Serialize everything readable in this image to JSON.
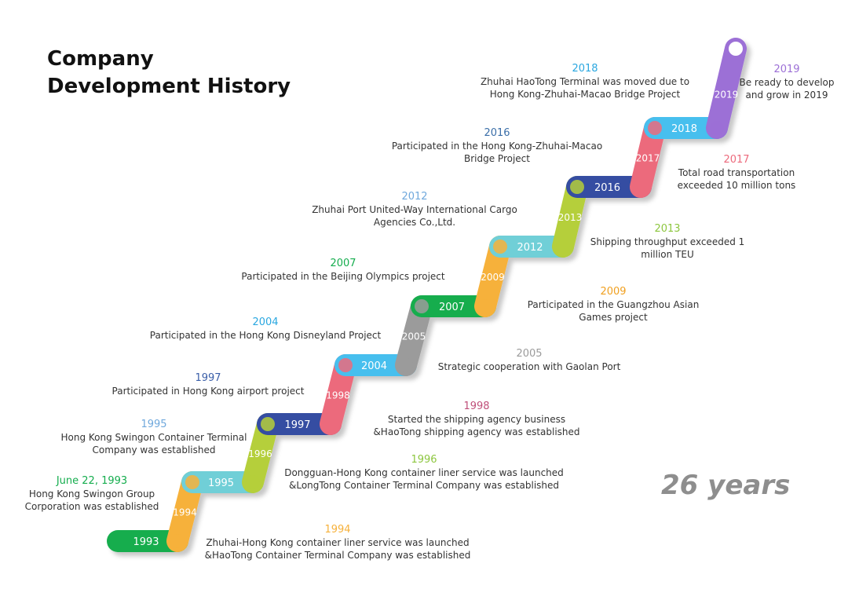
{
  "title": {
    "line1": "Company",
    "line2": "Development History"
  },
  "summary": "26 years",
  "colors": {
    "green": "#15ad4e",
    "orange": "#f6b13b",
    "teal": "#6fcfd7",
    "lime": "#b5cf3a",
    "navy": "#354ea2",
    "pink": "#ec6a7c",
    "sky": "#46bfee",
    "gray": "#9b9b9b",
    "purple": "#9c6fd6"
  },
  "steps": [
    {
      "year": "1993",
      "color": "green",
      "dot": "orange"
    },
    {
      "year": "1994",
      "color": "orange"
    },
    {
      "year": "1995",
      "color": "teal",
      "dot": "lime"
    },
    {
      "year": "1996",
      "color": "lime"
    },
    {
      "year": "1997",
      "color": "navy",
      "dot": "pink"
    },
    {
      "year": "1998",
      "color": "pink"
    },
    {
      "year": "2004",
      "color": "sky",
      "dot": "gray"
    },
    {
      "year": "2005",
      "color": "gray"
    },
    {
      "year": "2007",
      "color": "green",
      "dot": "orange"
    },
    {
      "year": "2009",
      "color": "orange"
    },
    {
      "year": "2012",
      "color": "teal",
      "dot": "lime"
    },
    {
      "year": "2013",
      "color": "lime"
    },
    {
      "year": "2016",
      "color": "navy",
      "dot": "pink"
    },
    {
      "year": "2017",
      "color": "pink"
    },
    {
      "year": "2018",
      "color": "sky",
      "dot": "purple"
    },
    {
      "year": "2019",
      "color": "purple"
    }
  ],
  "events": [
    {
      "date": "June 22, 1993",
      "text": "Hong Kong Swingon Group\nCorporation was established",
      "color": "#15ad4e"
    },
    {
      "date": "1994",
      "text": "Zhuhai-Hong Kong container liner service was launched\n&HaoTong Container Terminal Company was established",
      "color": "#f6b13b"
    },
    {
      "date": "1995",
      "text": "Hong Kong Swingon Container Terminal\nCompany was established",
      "color": "#6fa8dc"
    },
    {
      "date": "1996",
      "text": "Dongguan-Hong Kong container liner service was launched\n&LongTong Container Terminal Company was established",
      "color": "#8dc63f"
    },
    {
      "date": "1997",
      "text": "Participated in Hong Kong airport project",
      "color": "#3a5ea8"
    },
    {
      "date": "1998",
      "text": "Started the shipping agency business\n&HaoTong shipping agency was established",
      "color": "#c0507a"
    },
    {
      "date": "2004",
      "text": "Participated in the Hong Kong Disneyland Project",
      "color": "#2aa7e0"
    },
    {
      "date": "2005",
      "text": "Strategic cooperation with Gaolan Port",
      "color": "#9b9b9b"
    },
    {
      "date": "2007",
      "text": "Participated in the Beijing Olympics project",
      "color": "#15ad4e"
    },
    {
      "date": "2009",
      "text": "Participated in the Guangzhou Asian\nGames project",
      "color": "#f0a020"
    },
    {
      "date": "2012",
      "text": "Zhuhai Port United-Way International Cargo\nAgencies Co.,Ltd.",
      "color": "#6fa8dc"
    },
    {
      "date": "2013",
      "text": "Shipping throughput exceeded 1\nmillion TEU",
      "color": "#8dc63f"
    },
    {
      "date": "2016",
      "text": "Participated in the Hong Kong-Zhuhai-Macao\nBridge Project",
      "color": "#3a6ea8"
    },
    {
      "date": "2017",
      "text": "Total road transportation\nexceeded 10 million tons",
      "color": "#ec6a7c"
    },
    {
      "date": "2018",
      "text": "Zhuhai HaoTong Terminal was moved due to\nHong Kong-Zhuhai-Macao Bridge Project",
      "color": "#2aa7e0"
    },
    {
      "date": "2019",
      "text": "Be ready to develop\nand grow in 2019",
      "color": "#9c6fd6"
    }
  ]
}
